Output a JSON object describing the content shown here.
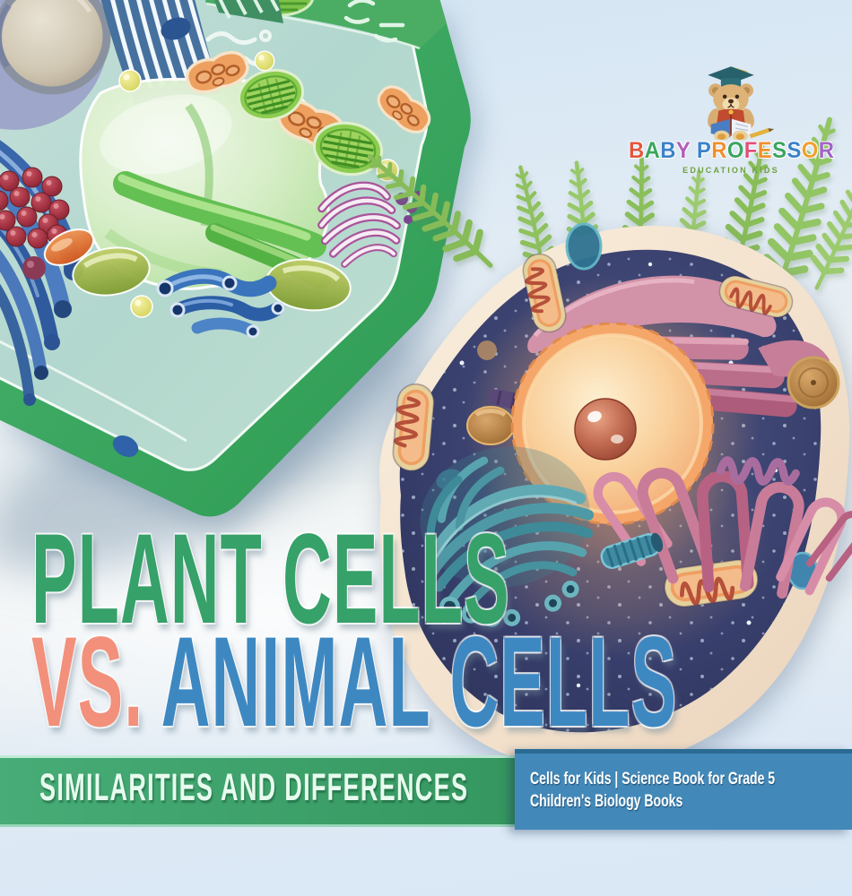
{
  "page": {
    "kind": "children's science book cover"
  },
  "logo": {
    "name": "BABY PROFESSOR",
    "letters": [
      {
        "ch": "B",
        "c": "#e2573d"
      },
      {
        "ch": "A",
        "c": "#3ba55f"
      },
      {
        "ch": "B",
        "c": "#3b82c8"
      },
      {
        "ch": "Y",
        "c": "#b45cb8"
      },
      {
        "ch": " ",
        "c": ""
      },
      {
        "ch": "P",
        "c": "#3b82c8"
      },
      {
        "ch": "R",
        "c": "#f08f2e"
      },
      {
        "ch": "O",
        "c": "#3ba55f"
      },
      {
        "ch": "F",
        "c": "#e2507a"
      },
      {
        "ch": "E",
        "c": "#f08f2e"
      },
      {
        "ch": "S",
        "c": "#3ba55f"
      },
      {
        "ch": "S",
        "c": "#3b82c8"
      },
      {
        "ch": "O",
        "c": "#f0a02e"
      },
      {
        "ch": "R",
        "c": "#a065c8"
      }
    ],
    "subtitle": "EDUCATION KIDS",
    "subtitle_color": "#6fa03c",
    "bear_icon": "baby-professor-bear"
  },
  "title": {
    "line1": "PLANT CELLS",
    "line1_color": "#36a169",
    "vs": "VS.",
    "vs_color": "#f2907c",
    "line2": "ANIMAL CELLS",
    "line2_color": "#3e88c2"
  },
  "banner": {
    "text": "SIMILARITIES AND DIFFERENCES",
    "text_color": "#e7fbee",
    "bg_color": "#3ea371"
  },
  "tagline": {
    "line1": "Cells for Kids | Science Book for Grade 5",
    "line2": "Children's Biology Books",
    "text_color": "#ffffff",
    "bg_color": "#4289b9"
  },
  "scene": {
    "plant_cell": "plant cell clay model",
    "animal_cell": "animal cell clay model",
    "ferns": "fern fronds"
  }
}
